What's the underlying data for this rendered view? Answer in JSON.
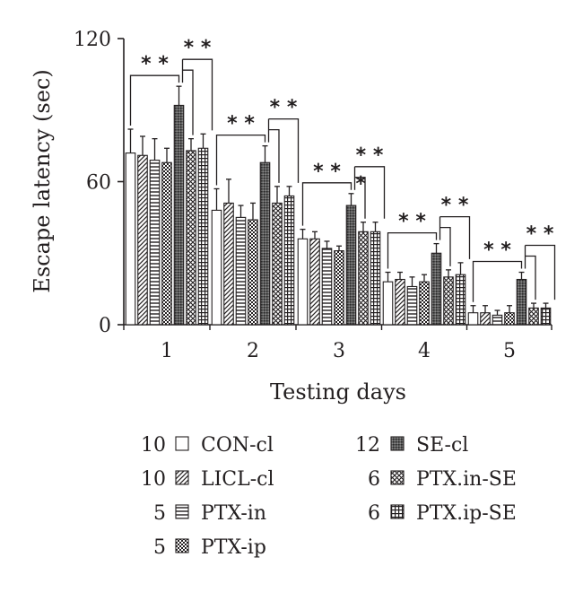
{
  "chart_data": {
    "type": "bar",
    "xlabel": "Testing days",
    "ylabel": "Escape latency (sec)",
    "ylim": [
      0,
      120
    ],
    "yticks": [
      "0",
      "60",
      "120"
    ],
    "categories": [
      "1",
      "2",
      "3",
      "4",
      "5"
    ],
    "series": [
      {
        "name": "CON-cl",
        "n": "10",
        "pattern": "none",
        "values": [
          72,
          48,
          36,
          18,
          5
        ],
        "errors": [
          10,
          9,
          4,
          4,
          3
        ]
      },
      {
        "name": "LICL-cl",
        "n": "10",
        "pattern": "diag",
        "values": [
          71,
          51,
          36,
          19,
          5
        ],
        "errors": [
          8,
          10,
          3,
          3,
          3
        ]
      },
      {
        "name": "PTX-in",
        "n": "5",
        "pattern": "hlines",
        "values": [
          69,
          45,
          32,
          16,
          4
        ],
        "errors": [
          9,
          5,
          3,
          4,
          2
        ]
      },
      {
        "name": "PTX-ip",
        "n": "5",
        "pattern": "checker",
        "values": [
          68,
          44,
          31,
          18,
          5
        ],
        "errors": [
          6,
          7,
          2,
          3,
          3
        ]
      },
      {
        "name": "SE-cl",
        "n": "12",
        "pattern": "dark",
        "values": [
          92,
          68,
          50,
          30,
          19
        ],
        "errors": [
          8,
          7,
          5,
          4,
          3
        ]
      },
      {
        "name": "PTX.in-SE",
        "n": "6",
        "pattern": "crosshatch",
        "values": [
          73,
          51,
          39,
          20,
          7
        ],
        "errors": [
          5,
          7,
          4,
          3,
          2
        ]
      },
      {
        "name": "PTX.ip-SE",
        "n": "6",
        "pattern": "grid",
        "values": [
          74,
          54,
          39,
          21,
          7
        ],
        "errors": [
          6,
          4,
          4,
          5,
          2
        ]
      }
    ],
    "significance": [
      {
        "day": "1",
        "outer_label": "* *",
        "inner_label": "* *"
      },
      {
        "day": "2",
        "outer_label": "* *",
        "inner_label": "* *"
      },
      {
        "day": "3",
        "outer_label": "* *",
        "mid_label": "*",
        "inner_label": "* *"
      },
      {
        "day": "4",
        "outer_label": "* *",
        "inner_label": "* *"
      },
      {
        "day": "5",
        "outer_label": "* *",
        "inner_label": "* *"
      }
    ],
    "legend": [
      {
        "n": "10",
        "label": "CON-cl",
        "pattern": "none"
      },
      {
        "n": "10",
        "label": "LICL-cl",
        "pattern": "diag"
      },
      {
        "n": "5",
        "label": "PTX-in",
        "pattern": "hlines"
      },
      {
        "n": "5",
        "label": "PTX-ip",
        "pattern": "checker"
      },
      {
        "n": "12",
        "label": "SE-cl",
        "pattern": "dark"
      },
      {
        "n": "6",
        "label": "PTX.in-SE",
        "pattern": "crosshatch"
      },
      {
        "n": "6",
        "label": "PTX.ip-SE",
        "pattern": "grid"
      }
    ],
    "grid": false,
    "legend_placement": "bottom"
  }
}
